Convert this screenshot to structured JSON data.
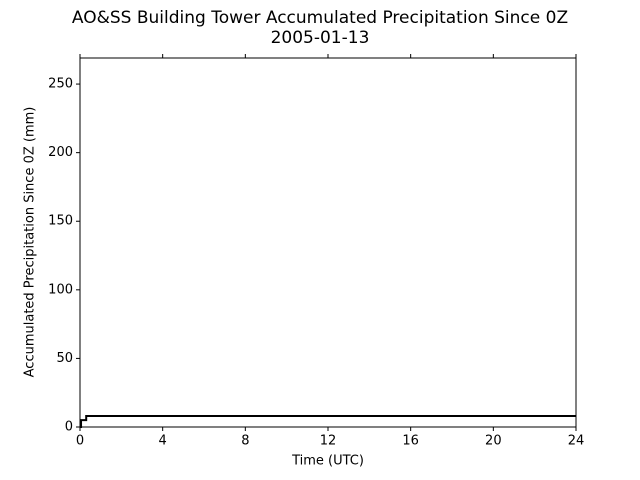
{
  "chart_data": {
    "type": "line",
    "title": "AO&SS Building Tower Accumulated Precipitation Since 0Z",
    "subtitle": "2005-01-13",
    "x_label": "Time (UTC)",
    "y_label": "Accumulated Precipitation Since 0Z (mm)",
    "x": [
      0,
      0.05,
      0.05,
      0.3,
      0.3,
      24
    ],
    "series": [
      {
        "color": "#000000",
        "values": [
          0,
          0,
          5,
          5,
          8,
          8
        ]
      }
    ],
    "xlim": [
      0,
      24
    ],
    "xticks": [
      0,
      4,
      8,
      12,
      16,
      20,
      24
    ],
    "ylim": [
      0,
      269
    ],
    "yticks": [
      0,
      50,
      100,
      150,
      200,
      250
    ],
    "grid": false
  }
}
